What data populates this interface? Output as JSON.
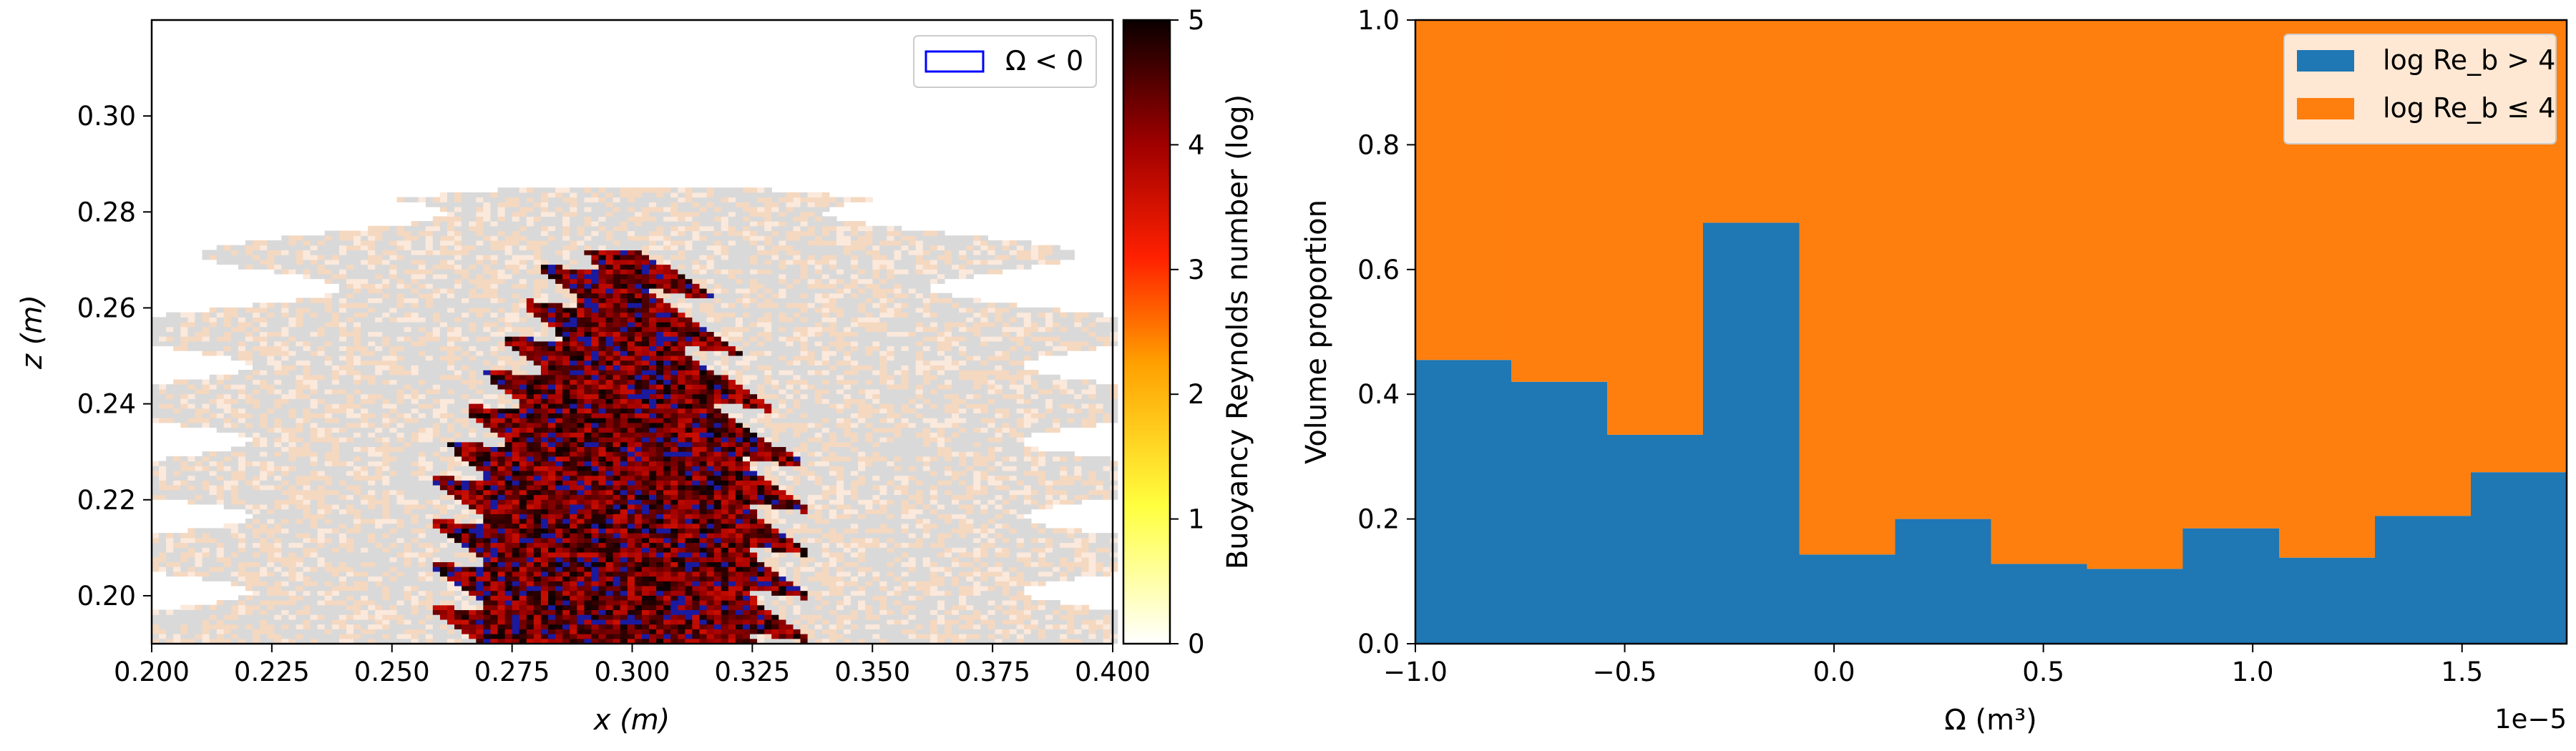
{
  "chart_data": [
    {
      "type": "heatmap",
      "xlabel": "x (m)",
      "ylabel": "z (m)",
      "xlim": [
        0.2,
        0.4
      ],
      "ylim": [
        0.19,
        0.32
      ],
      "xticks": [
        "0.200",
        "0.225",
        "0.250",
        "0.275",
        "0.300",
        "0.325",
        "0.350",
        "0.375",
        "0.400"
      ],
      "yticks": [
        "0.20",
        "0.22",
        "0.24",
        "0.26",
        "0.28",
        "0.30"
      ],
      "colorbar": {
        "label": "Buoyancy Reynolds number (log)",
        "range": [
          0,
          5
        ],
        "ticks": [
          "0",
          "1",
          "2",
          "3",
          "4",
          "5"
        ],
        "colormap": "hot_r"
      },
      "legend": {
        "label": "Ω < 0",
        "edge_color": "#0000ff",
        "placement": "top-right"
      },
      "regions": {
        "core_x": [
          0.268,
          0.335
        ],
        "core_z_bottom": 0.19,
        "core_z_top": 0.272,
        "background_color": "#d9d9d9"
      }
    },
    {
      "type": "bar",
      "xlabel": "Ω (m³)",
      "ylabel": "Volume proportion",
      "x_offset_label": "1e−5",
      "xlim": [
        -1.0,
        1.75
      ],
      "ylim": [
        0.0,
        1.0
      ],
      "xticks": [
        "−1.0",
        "−0.5",
        "0.0",
        "0.5",
        "1.0",
        "1.5"
      ],
      "yticks": [
        "0.0",
        "0.2",
        "0.4",
        "0.6",
        "0.8",
        "1.0"
      ],
      "bin_edges": [
        -1.0,
        -0.771,
        -0.542,
        -0.313,
        -0.083,
        0.146,
        0.375,
        0.604,
        0.833,
        1.063,
        1.292,
        1.521,
        1.75
      ],
      "series": [
        {
          "name": "log Re_b > 4",
          "values": [
            0.455,
            0.42,
            0.335,
            0.675,
            0.143,
            0.2,
            0.128,
            0.12,
            0.185,
            0.138,
            0.205,
            0.275
          ]
        },
        {
          "name": "log Re_b ≤ 4",
          "values": [
            0.545,
            0.58,
            0.665,
            0.325,
            0.857,
            0.8,
            0.872,
            0.88,
            0.815,
            0.862,
            0.795,
            0.725
          ]
        }
      ],
      "legend_placement": "top-right",
      "colors": [
        "#1f77b4",
        "#ff7f0e"
      ]
    }
  ]
}
